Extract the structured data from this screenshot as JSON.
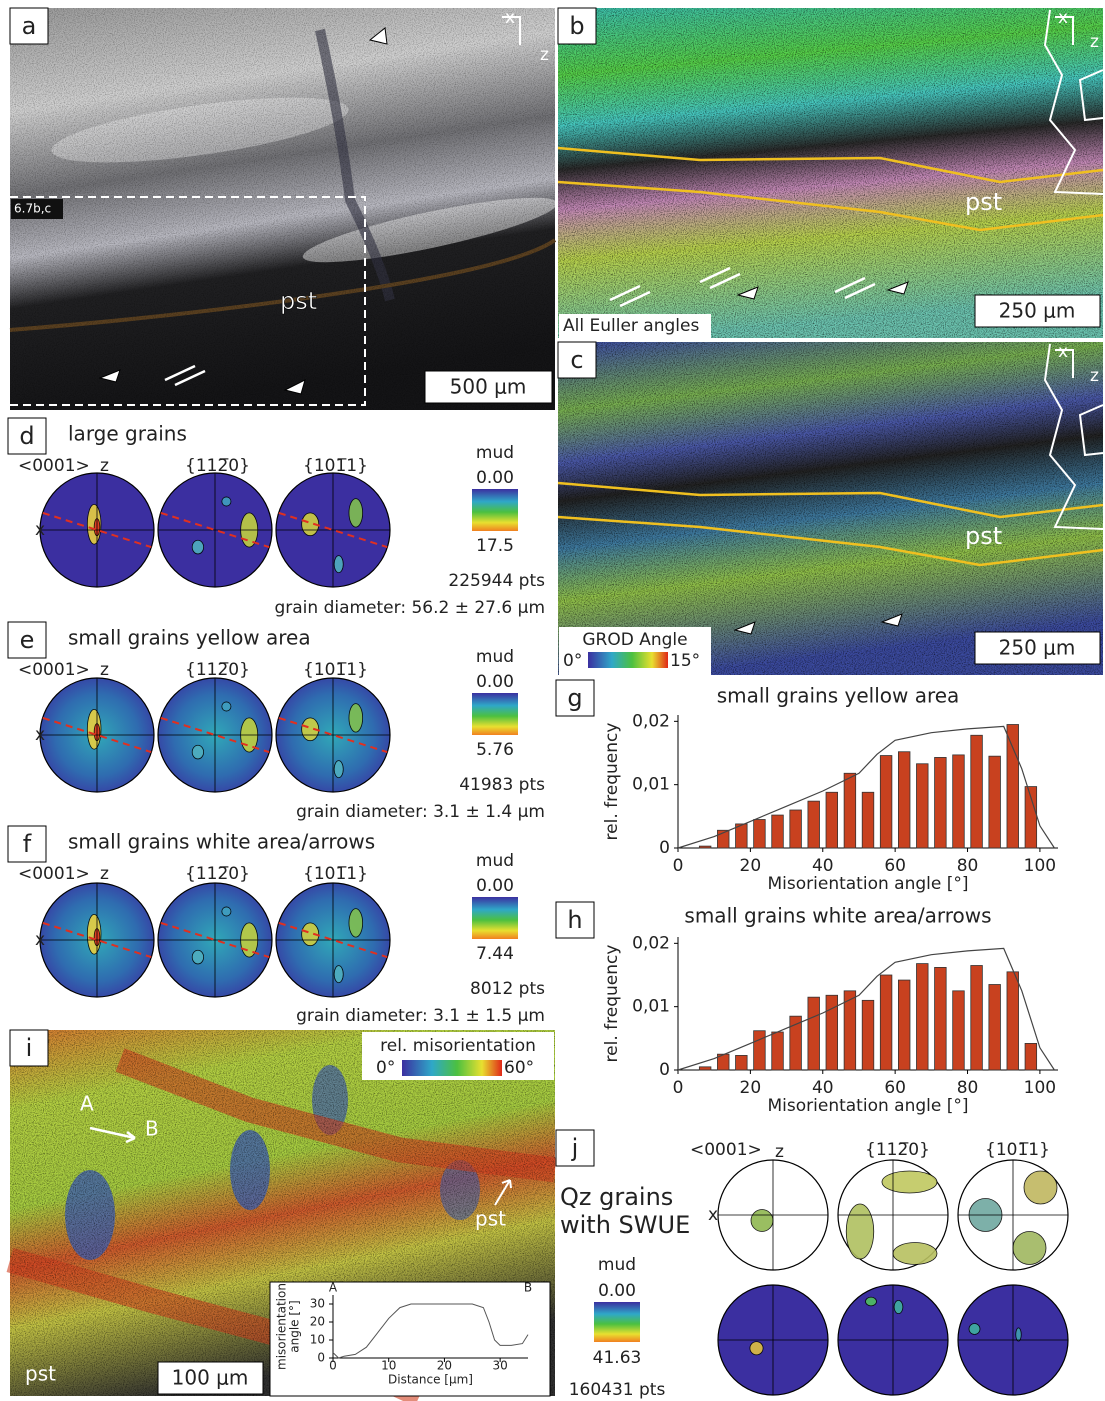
{
  "panels": {
    "a": {
      "label": "a",
      "x": "x",
      "z": "z",
      "inset": "6.7b,c",
      "pst": "pst",
      "scale": "500 μm"
    },
    "b": {
      "label": "b",
      "x": "x",
      "z": "z",
      "pst": "pst",
      "caption": "All Euller angles",
      "scale": "250 μm"
    },
    "c": {
      "label": "c",
      "x": "x",
      "z": "z",
      "pst": "pst",
      "legend": "GROD Angle",
      "min": "0°",
      "max": "15°",
      "scale": "250 μm"
    },
    "d": {
      "label": "d",
      "title": "large grains",
      "poles": [
        "<0001>",
        "{112̅0}",
        "{101̅1}"
      ],
      "z": "z",
      "x": "x",
      "unit": "mud",
      "min": "0.00",
      "max": "17.5",
      "points": "225944 pts",
      "diameter": "grain diameter: 56.2 ± 27.6 μm"
    },
    "e": {
      "label": "e",
      "title": "small grains yellow area",
      "poles": [
        "<0001>",
        "{112̅0}",
        "{101̅1}"
      ],
      "z": "z",
      "x": "x",
      "unit": "mud",
      "min": "0.00",
      "max": "5.76",
      "points": "41983 pts",
      "diameter": "grain diameter: 3.1 ± 1.4 μm"
    },
    "f": {
      "label": "f",
      "title": "small grains white area/arrows",
      "poles": [
        "<0001>",
        "{112̅0}",
        "{101̅1}"
      ],
      "z": "z",
      "x": "x",
      "unit": "mud",
      "min": "0.00",
      "max": "7.44",
      "points": "8012 pts",
      "diameter": "grain diameter: 3.1 ± 1.5 μm"
    },
    "i": {
      "label": "i",
      "legend": "rel. misorientation",
      "min": "0°",
      "max": "60°",
      "a": "A",
      "b": "B",
      "pst_arrow": "pst",
      "pst": "pst",
      "scale": "100 μm"
    },
    "j": {
      "label": "j",
      "title": [
        "Qz grains",
        "with SWUE"
      ],
      "poles": [
        "<0001>",
        "{112̅0}",
        "{101̅1}"
      ],
      "z": "z",
      "x": "x",
      "unit": "mud",
      "min": "0.00",
      "max": "41.63",
      "points": "160431 pts"
    }
  },
  "chart_data": [
    {
      "type": "histogram",
      "label": "g",
      "title": "small grains yellow area",
      "xlabel": "Misorientation angle [°]",
      "ylabel": "rel. frequency",
      "bins": [
        5,
        10,
        15,
        20,
        25,
        30,
        35,
        40,
        45,
        50,
        55,
        60,
        65,
        70,
        75,
        80,
        85,
        90,
        95,
        100
      ],
      "values": [
        0.0003,
        0.0028,
        0.0038,
        0.0045,
        0.0052,
        0.006,
        0.0074,
        0.0088,
        0.0118,
        0.0088,
        0.0146,
        0.0152,
        0.0133,
        0.0143,
        0.0147,
        0.0178,
        0.0145,
        0.0195,
        0.0097
      ],
      "color": "#c8411f",
      "curve": {
        "x": [
          0,
          10,
          20,
          30,
          40,
          50,
          55,
          60,
          70,
          80,
          90,
          95,
          100,
          104
        ],
        "values": [
          0,
          0.0018,
          0.0042,
          0.0066,
          0.009,
          0.0118,
          0.0148,
          0.017,
          0.0182,
          0.0188,
          0.0192,
          0.0125,
          0.0035,
          0
        ]
      },
      "xlim": [
        0,
        105
      ],
      "xticks": [
        0,
        20,
        40,
        60,
        80,
        100
      ],
      "ylim": [
        0,
        0.021
      ],
      "yticks": [
        0,
        {
          "value": 0.01,
          "label": "0,01"
        },
        {
          "value": 0.02,
          "label": "0,02"
        }
      ]
    },
    {
      "type": "histogram",
      "label": "h",
      "title": "small grains white area/arrows",
      "xlabel": "Misorientation angle [°]",
      "ylabel": "rel. frequency",
      "bins": [
        5,
        10,
        15,
        20,
        25,
        30,
        35,
        40,
        45,
        50,
        55,
        60,
        65,
        70,
        75,
        80,
        85,
        90,
        95,
        100
      ],
      "values": [
        0.0005,
        0.0025,
        0.0023,
        0.0062,
        0.006,
        0.0085,
        0.0115,
        0.0118,
        0.0125,
        0.011,
        0.015,
        0.0142,
        0.0168,
        0.0162,
        0.0125,
        0.0165,
        0.0135,
        0.0155,
        0.0042
      ],
      "color": "#c8411f",
      "curve": {
        "x": [
          0,
          10,
          20,
          30,
          40,
          50,
          55,
          60,
          70,
          80,
          90,
          95,
          100,
          104
        ],
        "values": [
          0,
          0.0018,
          0.0042,
          0.0066,
          0.009,
          0.0118,
          0.0148,
          0.017,
          0.0182,
          0.0188,
          0.0192,
          0.0125,
          0.0035,
          0
        ]
      },
      "xlim": [
        0,
        105
      ],
      "xticks": [
        0,
        20,
        40,
        60,
        80,
        100
      ],
      "ylim": [
        0,
        0.021
      ],
      "yticks": [
        0,
        {
          "value": 0.01,
          "label": "0,01"
        },
        {
          "value": 0.02,
          "label": "0,02"
        }
      ]
    },
    {
      "type": "line",
      "start": "A",
      "end": "B",
      "xlabel": "Distance [μm]",
      "ylabel": [
        "misorientation",
        "angle [°]"
      ],
      "x": [
        0,
        1,
        2,
        4,
        6,
        8,
        10,
        12,
        14,
        20,
        25,
        27,
        28,
        29,
        30,
        32,
        34,
        35
      ],
      "values": [
        3,
        0,
        1,
        2,
        6,
        14,
        22,
        28,
        30,
        30,
        30,
        28,
        20,
        10,
        7,
        7,
        8,
        13
      ],
      "color": "#555555",
      "xlim": [
        0,
        35
      ],
      "xticks": [
        0,
        10,
        20,
        30
      ],
      "ylim": [
        0,
        35
      ],
      "yticks": [
        0,
        10,
        20,
        30
      ]
    }
  ]
}
